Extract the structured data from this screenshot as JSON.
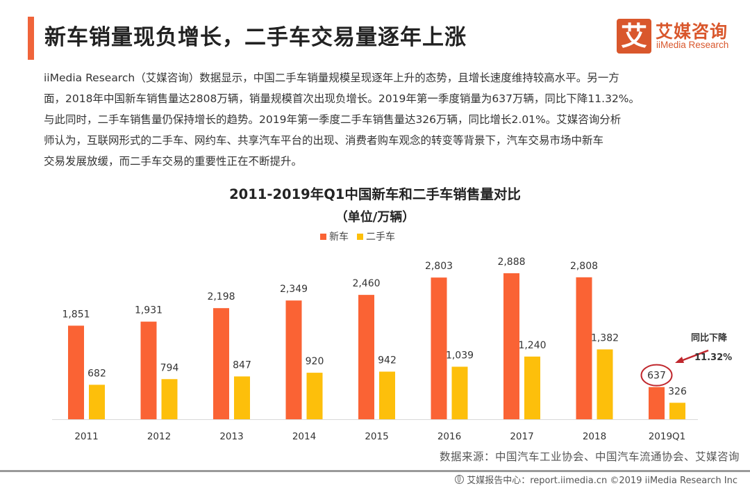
{
  "header": {
    "title": "新车销量现负增长，二手车交易量逐年上涨",
    "accent_color": "#f0643a"
  },
  "logo": {
    "mark": "艾",
    "name_cn": "艾媒咨询",
    "name_en": "iiMedia Research",
    "color": "#d9572c"
  },
  "paragraph": [
    "iiMedia Research（艾媒咨询）数据显示，中国二手车销量规模呈现逐年上升的态势，且增长速度维持较高水平。另一方",
    "面，2018年中国新车销售量达2808万辆，销量规模首次出现负增长。2019年第一季度销量为637万辆，同比下降11.32%。",
    "与此同时，二手车销售量仍保持增长的趋势。2019年第一季度二手车销售量达326万辆，同比增长2.01%。艾媒咨询分析",
    "师认为，互联网形式的二手车、网约车、共享汽车平台的出现、消费者购车观念的转变等背景下，汽车交易市场中新车",
    "交易发展放缓，而二手车交易的重要性正在不断提升。"
  ],
  "chart_data": {
    "type": "bar",
    "title": "2011-2019年Q1中国新车和二手车销售量对比",
    "subtitle": "（单位/万辆）",
    "xlabel": "",
    "ylabel": "",
    "categories": [
      "2011",
      "2012",
      "2013",
      "2014",
      "2015",
      "2016",
      "2017",
      "2018",
      "2019Q1"
    ],
    "series": [
      {
        "name": "新车",
        "color": "#fa6334",
        "values": [
          1851,
          1931,
          2198,
          2349,
          2460,
          2803,
          2888,
          2808,
          637
        ],
        "labels": [
          "1,851",
          "1,931",
          "2,198",
          "2,349",
          "2,460",
          "2,803",
          "2,888",
          "2,808",
          "637"
        ]
      },
      {
        "name": "二手车",
        "color": "#fdbf0b",
        "values": [
          682,
          794,
          847,
          920,
          942,
          1039,
          1240,
          1382,
          326
        ],
        "labels": [
          "682",
          "794",
          "847",
          "920",
          "942",
          "1,039",
          "1,240",
          "1,382",
          "326"
        ]
      }
    ],
    "ylim": [
      0,
      2888
    ],
    "grid": false,
    "legend": "top-center",
    "annotation": {
      "target": "2019Q1 新车",
      "line1": "同比下降",
      "line2": "11.32%",
      "circle_color": "#c0272d",
      "arrow_color": "#c0272d"
    }
  },
  "source": "数据来源：中国汽车工业协会、中国汽车流通协会、艾媒咨询",
  "footer": {
    "text": "艾媒报告中心：report.iimedia.cn   ©2019  iiMedia Research  Inc"
  }
}
